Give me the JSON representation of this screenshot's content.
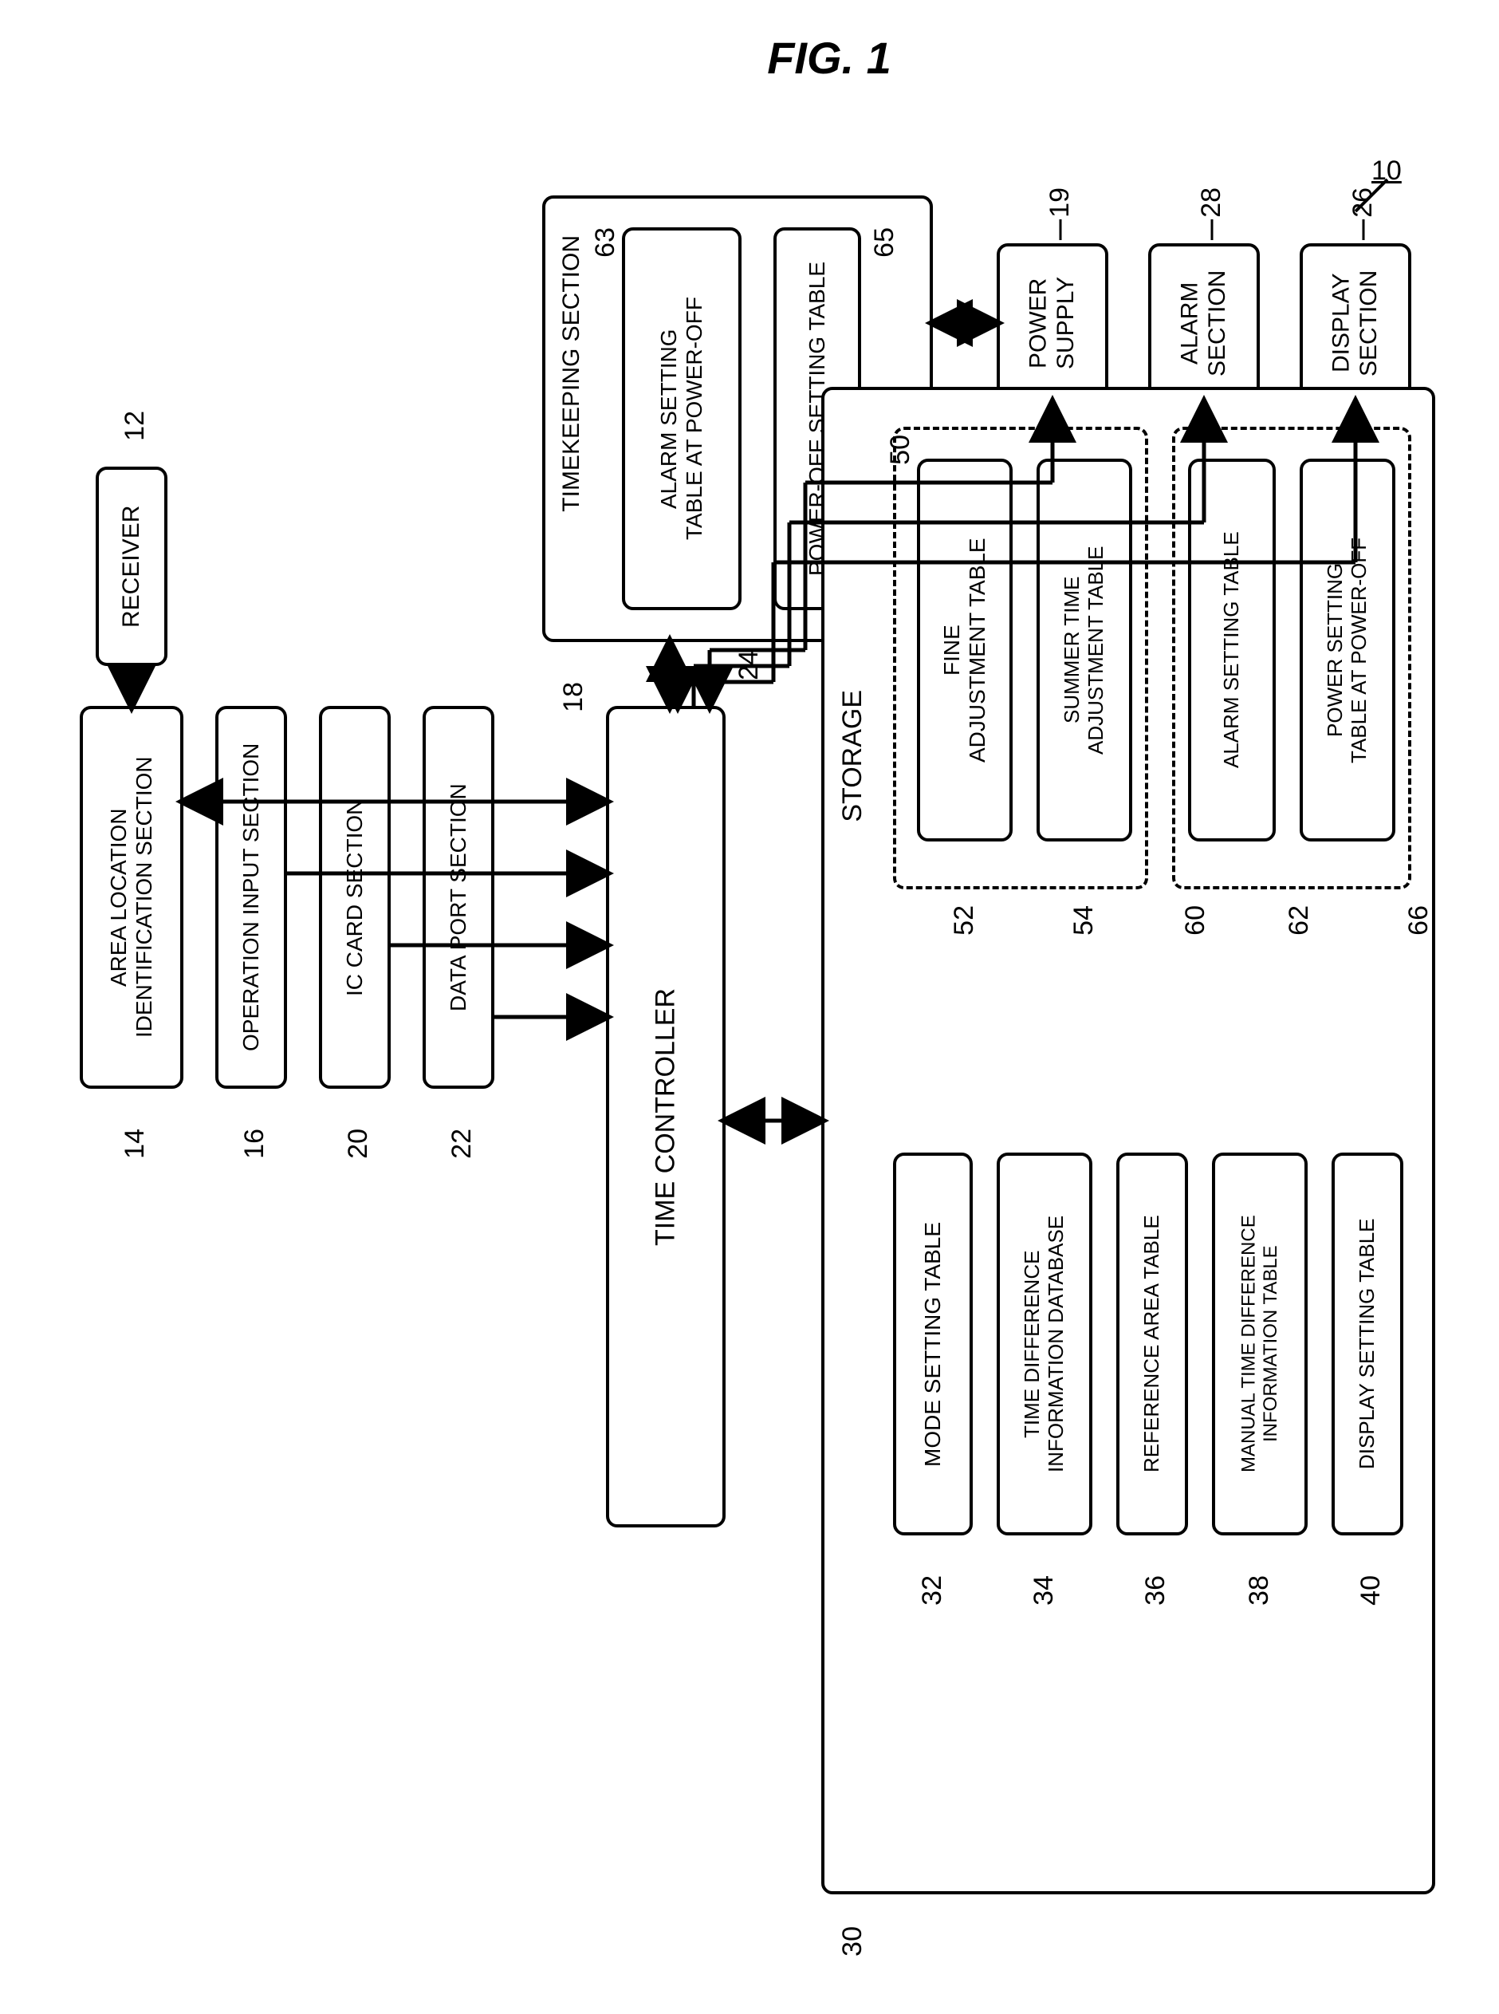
{
  "figure_title": "FIG. 1",
  "system_label": "10",
  "blocks": {
    "receiver": {
      "ref": "12",
      "text": "RECEIVER"
    },
    "area_loc": {
      "ref": "14",
      "text": "AREA LOCATION\nIDENTIFICATION SECTION"
    },
    "op_input": {
      "ref": "16",
      "text": "OPERATION INPUT SECTION"
    },
    "ic_card": {
      "ref": "20",
      "text": "IC CARD SECTION"
    },
    "data_port": {
      "ref": "22",
      "text": "DATA PORT SECTION"
    },
    "timekeeping": {
      "ref": "18",
      "text": "TIMEKEEPING SECTION"
    },
    "alarm_off": {
      "ref": "63",
      "text": "ALARM SETTING\nTABLE AT POWER-OFF"
    },
    "poweroff": {
      "ref": "65",
      "text": "POWER-OFF SETTING TABLE"
    },
    "power_supply": {
      "ref": "19",
      "text": "POWER\nSUPPLY"
    },
    "alarm_section": {
      "ref": "28",
      "text": "ALARM\nSECTION"
    },
    "display_section": {
      "ref": "26",
      "text": "DISPLAY\nSECTION"
    },
    "time_controller": {
      "ref": "24",
      "text": "TIME CONTROLLER"
    },
    "storage": {
      "ref": "30",
      "text": "STORAGE"
    },
    "mode_setting": {
      "ref": "32",
      "text": "MODE SETTING TABLE"
    },
    "time_diff_db": {
      "ref": "34",
      "text": "TIME DIFFERENCE\nINFORMATION DATABASE"
    },
    "ref_area": {
      "ref": "36",
      "text": "REFERENCE AREA TABLE"
    },
    "manual_td": {
      "ref": "38",
      "text": "MANUAL TIME DIFFERENCE\nINFORMATION TABLE"
    },
    "display_setting": {
      "ref": "40",
      "text": "DISPLAY SETTING TABLE"
    },
    "group50": {
      "ref": "50"
    },
    "fine_adj": {
      "ref": "52",
      "text": "FINE\nADJUSTMENT TABLE"
    },
    "summer": {
      "ref": "54",
      "text": "SUMMER TIME\nADJUSTMENT TABLE"
    },
    "group60": {
      "ref": "60"
    },
    "alarm_set": {
      "ref": "62",
      "text": "ALARM SETTING TABLE"
    },
    "power_set": {
      "ref": "66",
      "text": "POWER SETTING\nTABLE AT POWER-OFF"
    }
  },
  "style": {
    "stroke": "#000000",
    "stroke_width": 4,
    "arrow_size": 16
  }
}
